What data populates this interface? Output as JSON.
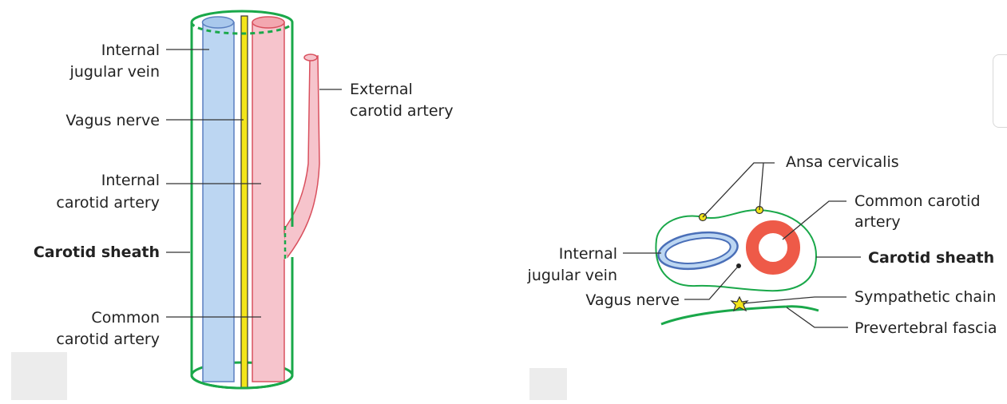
{
  "left_diagram": {
    "labels": {
      "ijv_line1": "Internal",
      "ijv_line2": "jugular vein",
      "vagus": "Vagus nerve",
      "ica_line1": "Internal",
      "ica_line2": "carotid artery",
      "sheath": "Carotid sheath",
      "cca_line1": "Common",
      "cca_line2": "carotid artery",
      "eca_line1": "External",
      "eca_line2": "carotid artery"
    }
  },
  "right_diagram": {
    "labels": {
      "ansa": "Ansa cervicalis",
      "cca_line1": "Common carotid",
      "cca_line2": "artery",
      "sheath": "Carotid sheath",
      "ijv_line1": "Internal",
      "ijv_line2": "jugular vein",
      "vagus": "Vagus nerve",
      "sympathetic": "Sympathetic chain",
      "fascia": "Prevertebral fascia"
    }
  },
  "colors": {
    "sheath_green": "#1aa84a",
    "vein_blue_fill": "#bcd6f2",
    "vein_blue_stroke": "#5a7fc0",
    "artery_pink_fill": "#f6c4cc",
    "artery_red_stroke": "#d9505e",
    "artery_red_fill": "#ee5a48",
    "nerve_yellow": "#f3e51a"
  }
}
